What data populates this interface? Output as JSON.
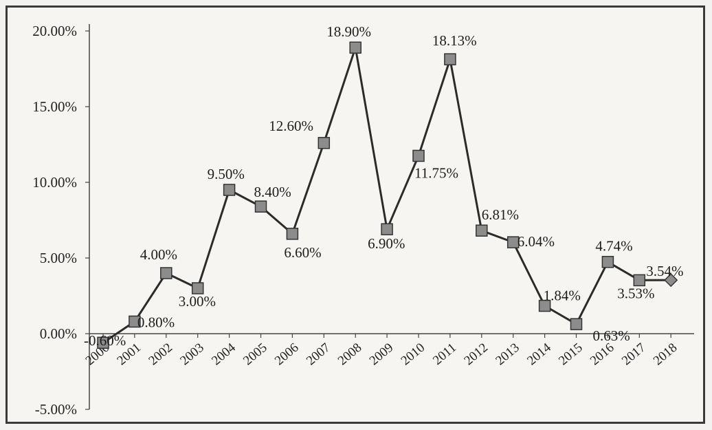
{
  "chart_data": {
    "type": "line",
    "title": "",
    "xlabel": "",
    "ylabel": "",
    "categories": [
      "2000",
      "2001",
      "2002",
      "2003",
      "2004",
      "2005",
      "2006",
      "2007",
      "2008",
      "2009",
      "2010",
      "2011",
      "2012",
      "2013",
      "2014",
      "2015",
      "2016",
      "2017",
      "2018"
    ],
    "series": [
      {
        "values": [
          -0.6,
          0.8,
          4.0,
          3.0,
          9.5,
          8.4,
          6.6,
          12.6,
          18.9,
          6.9,
          11.75,
          18.13,
          6.81,
          6.04,
          1.84,
          0.63,
          4.74,
          3.53,
          3.54
        ],
        "data_labels": [
          "-0.60%",
          "0.80%",
          "4.00%",
          "3.00%",
          "9.50%",
          "8.40%",
          "6.60%",
          "12.60%",
          "18.90%",
          "6.90%",
          "11.75%",
          "18.13%",
          "6.81%",
          "6.04%",
          "1.84%",
          "0.63%",
          "4.74%",
          "3.53%",
          "3.54%"
        ],
        "color": "#2b2b2b",
        "marker_color": "#8c8c8c"
      }
    ],
    "ylim": [
      -5,
      20
    ],
    "yticks": [
      -5,
      0,
      5,
      10,
      15,
      20
    ],
    "ytick_labels": [
      "-5.00%",
      "0.00%",
      "5.00%",
      "10.00%",
      "15.00%",
      "20.00%"
    ],
    "grid": false,
    "legend": "none"
  }
}
